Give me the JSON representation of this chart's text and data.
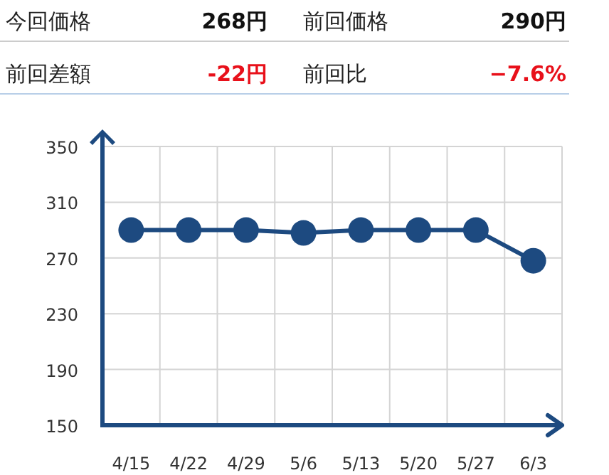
{
  "chart_data": [
    {
      "type": "other",
      "annotations": [
        "今回価格",
        "268円",
        "前回価格",
        "290円",
        "前回差額",
        "-22円",
        "前回比",
        "−7.6%"
      ]
    },
    {
      "type": "line",
      "categories": [
        "4/15",
        "4/22",
        "4/29",
        "5/6",
        "5/13",
        "5/20",
        "5/27",
        "6/3"
      ],
      "series": [
        {
          "color": "#1d4a80",
          "values": [
            290,
            290,
            290,
            288,
            290,
            290,
            290,
            268
          ]
        }
      ],
      "ylim": [
        150,
        350
      ],
      "yticks": [
        150,
        190,
        230,
        270,
        310,
        350
      ],
      "grid": true,
      "marker": "circle",
      "line_style": "solid"
    }
  ]
}
